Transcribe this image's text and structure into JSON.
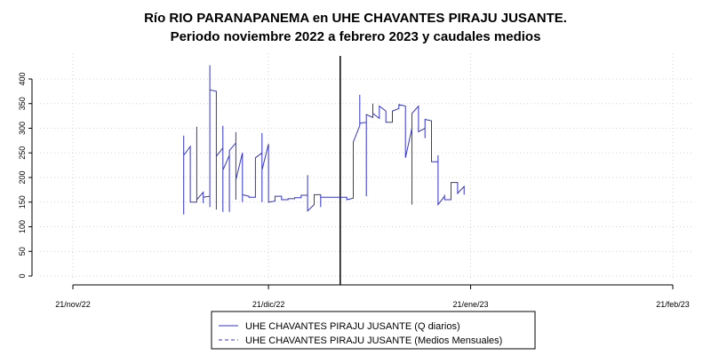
{
  "chart_data": {
    "type": "line",
    "title": "Río RIO PARANAPANEMA en UHE CHAVANTES PIRAJU JUSANTE.",
    "subtitle": "Periodo noviembre 2022 a febrero 2023 y caudales medios",
    "xlabel": "",
    "ylabel": "",
    "ylim": [
      0,
      430
    ],
    "xlim": [
      "2022-11-21",
      "2023-02-21"
    ],
    "yticks": [
      0,
      50,
      100,
      150,
      200,
      250,
      300,
      350,
      400
    ],
    "xticks": [
      {
        "date": "2022-11-21",
        "label": "21/nov/22"
      },
      {
        "date": "2022-12-21",
        "label": "21/dic/22"
      },
      {
        "date": "2023-01-21",
        "label": "21/ene/23"
      },
      {
        "date": "2023-02-21",
        "label": "21/feb/23"
      }
    ],
    "grid": true,
    "vertical_marker": "2023-01-01",
    "legend_position": "bottom",
    "series": [
      {
        "name": "UHE CHAVANTES PIRAJU JUSANTE (Q diarios)",
        "color": "#3333cc",
        "style": "solid",
        "points": [
          {
            "x": "2022-12-08",
            "y": 285
          },
          {
            "x": "2022-12-08",
            "y": 125
          },
          {
            "x": "2022-12-08",
            "y": 245
          },
          {
            "x": "2022-12-09",
            "y": 263
          },
          {
            "x": "2022-12-09",
            "y": 150
          },
          {
            "x": "2022-12-10",
            "y": 150
          },
          {
            "x": "2022-12-10",
            "y": 303
          },
          {
            "x": "2022-12-10",
            "y": 155
          },
          {
            "x": "2022-12-11",
            "y": 170
          },
          {
            "x": "2022-12-11",
            "y": 148
          },
          {
            "x": "2022-12-11",
            "y": 160
          },
          {
            "x": "2022-12-12",
            "y": 162
          },
          {
            "x": "2022-12-12",
            "y": 428
          },
          {
            "x": "2022-12-12",
            "y": 140
          },
          {
            "x": "2022-12-12",
            "y": 378
          },
          {
            "x": "2022-12-13",
            "y": 375
          },
          {
            "x": "2022-12-13",
            "y": 135
          },
          {
            "x": "2022-12-13",
            "y": 243
          },
          {
            "x": "2022-12-14",
            "y": 260
          },
          {
            "x": "2022-12-14",
            "y": 130
          },
          {
            "x": "2022-12-14",
            "y": 305
          },
          {
            "x": "2022-12-14",
            "y": 215
          },
          {
            "x": "2022-12-15",
            "y": 245
          },
          {
            "x": "2022-12-15",
            "y": 130
          },
          {
            "x": "2022-12-15",
            "y": 255
          },
          {
            "x": "2022-12-16",
            "y": 270
          },
          {
            "x": "2022-12-16",
            "y": 155
          },
          {
            "x": "2022-12-16",
            "y": 292
          },
          {
            "x": "2022-12-16",
            "y": 195
          },
          {
            "x": "2022-12-17",
            "y": 250
          },
          {
            "x": "2022-12-17",
            "y": 150
          },
          {
            "x": "2022-12-17",
            "y": 165
          },
          {
            "x": "2022-12-18",
            "y": 162
          },
          {
            "x": "2022-12-18",
            "y": 160
          },
          {
            "x": "2022-12-19",
            "y": 160
          },
          {
            "x": "2022-12-19",
            "y": 240
          },
          {
            "x": "2022-12-20",
            "y": 250
          },
          {
            "x": "2022-12-20",
            "y": 150
          },
          {
            "x": "2022-12-20",
            "y": 290
          },
          {
            "x": "2022-12-20",
            "y": 215
          },
          {
            "x": "2022-12-21",
            "y": 268
          },
          {
            "x": "2022-12-21",
            "y": 150
          },
          {
            "x": "2022-12-22",
            "y": 152
          },
          {
            "x": "2022-12-22",
            "y": 162
          },
          {
            "x": "2022-12-23",
            "y": 162
          },
          {
            "x": "2022-12-23",
            "y": 155
          },
          {
            "x": "2022-12-24",
            "y": 155
          },
          {
            "x": "2022-12-24",
            "y": 157
          },
          {
            "x": "2022-12-25",
            "y": 157
          },
          {
            "x": "2022-12-25",
            "y": 159
          },
          {
            "x": "2022-12-26",
            "y": 159
          },
          {
            "x": "2022-12-26",
            "y": 164
          },
          {
            "x": "2022-12-27",
            "y": 164
          },
          {
            "x": "2022-12-27",
            "y": 205
          },
          {
            "x": "2022-12-27",
            "y": 132
          },
          {
            "x": "2022-12-28",
            "y": 145
          },
          {
            "x": "2022-12-28",
            "y": 165
          },
          {
            "x": "2022-12-29",
            "y": 165
          },
          {
            "x": "2022-12-29",
            "y": 140
          },
          {
            "x": "2022-12-29",
            "y": 160
          },
          {
            "x": "2023-01-01",
            "y": 160
          },
          {
            "x": "2023-01-02",
            "y": 160
          },
          {
            "x": "2023-01-02",
            "y": 155
          },
          {
            "x": "2023-01-03",
            "y": 158
          },
          {
            "x": "2023-01-03",
            "y": 272
          },
          {
            "x": "2023-01-04",
            "y": 305
          },
          {
            "x": "2023-01-04",
            "y": 368
          },
          {
            "x": "2023-01-04",
            "y": 310
          },
          {
            "x": "2023-01-05",
            "y": 312
          },
          {
            "x": "2023-01-05",
            "y": 162
          },
          {
            "x": "2023-01-05",
            "y": 328
          },
          {
            "x": "2023-01-06",
            "y": 322
          },
          {
            "x": "2023-01-06",
            "y": 350
          },
          {
            "x": "2023-01-06",
            "y": 330
          },
          {
            "x": "2023-01-07",
            "y": 320
          },
          {
            "x": "2023-01-07",
            "y": 345
          },
          {
            "x": "2023-01-08",
            "y": 335
          },
          {
            "x": "2023-01-08",
            "y": 312
          },
          {
            "x": "2023-01-09",
            "y": 312
          },
          {
            "x": "2023-01-09",
            "y": 335
          },
          {
            "x": "2023-01-10",
            "y": 340
          },
          {
            "x": "2023-01-10",
            "y": 348
          },
          {
            "x": "2023-01-11",
            "y": 345
          },
          {
            "x": "2023-01-11",
            "y": 240
          },
          {
            "x": "2023-01-12",
            "y": 300
          },
          {
            "x": "2023-01-12",
            "y": 145
          },
          {
            "x": "2023-01-12",
            "y": 330
          },
          {
            "x": "2023-01-13",
            "y": 345
          },
          {
            "x": "2023-01-13",
            "y": 293
          },
          {
            "x": "2023-01-14",
            "y": 300
          },
          {
            "x": "2023-01-14",
            "y": 280
          },
          {
            "x": "2023-01-14",
            "y": 318
          },
          {
            "x": "2023-01-15",
            "y": 315
          },
          {
            "x": "2023-01-15",
            "y": 232
          },
          {
            "x": "2023-01-16",
            "y": 232
          },
          {
            "x": "2023-01-16",
            "y": 245
          },
          {
            "x": "2023-01-16",
            "y": 145
          },
          {
            "x": "2023-01-17",
            "y": 162
          },
          {
            "x": "2023-01-17",
            "y": 165
          },
          {
            "x": "2023-01-17",
            "y": 155
          },
          {
            "x": "2023-01-18",
            "y": 155
          },
          {
            "x": "2023-01-18",
            "y": 190
          },
          {
            "x": "2023-01-19",
            "y": 190
          },
          {
            "x": "2023-01-19",
            "y": 168
          },
          {
            "x": "2023-01-20",
            "y": 182
          },
          {
            "x": "2023-01-20",
            "y": 165
          }
        ]
      },
      {
        "name": "UHE CHAVANTES PIRAJU JUSANTE (Medios Mensuales)",
        "color": "#3333cc",
        "style": "dashed",
        "points": []
      }
    ]
  }
}
